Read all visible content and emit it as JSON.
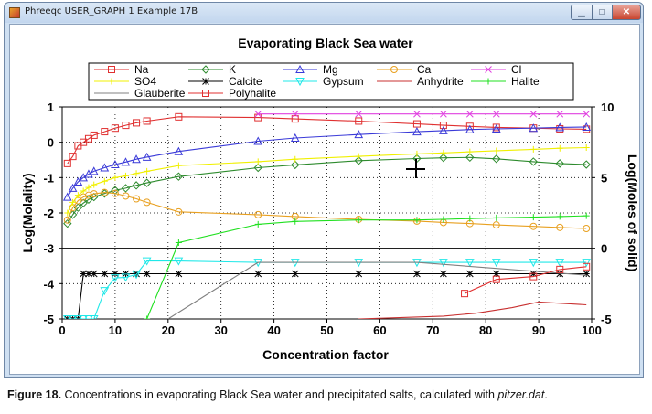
{
  "window": {
    "title": "Phreeqc USER_GRAPH 1 Example 17B"
  },
  "caption": {
    "label": "Figure 18.",
    "text": " Concentrations in evaporating Black Sea water and precipitated salts, calculated with ",
    "italic": "pitzer.dat",
    "end": "."
  },
  "chart_data": {
    "type": "line",
    "title": "Evaporating Black Sea water",
    "xlabel": "Concentration factor",
    "ylabel": "Log(Molality)",
    "y2label": "Log(Moles of solid)",
    "xlim": [
      0,
      100
    ],
    "ylim": [
      -5,
      1
    ],
    "y2lim": [
      -5,
      10
    ],
    "xticks": [
      0,
      10,
      20,
      30,
      40,
      50,
      60,
      70,
      80,
      90,
      100
    ],
    "yticks": [
      -5,
      -4,
      -3,
      -2,
      -1,
      0,
      1
    ],
    "y2ticks": [
      -5,
      0,
      5,
      10
    ],
    "grid": true,
    "legend_position": "top",
    "series": [
      {
        "name": "Na",
        "axis": "left",
        "color": "#e03030",
        "marker": "square",
        "x": [
          1,
          2,
          3,
          4,
          5,
          6,
          8,
          10,
          12,
          14,
          16,
          22,
          37,
          44,
          56,
          67,
          72,
          77,
          82,
          89,
          94,
          99
        ],
        "y": [
          -0.6,
          -0.4,
          -0.1,
          0.0,
          0.1,
          0.2,
          0.3,
          0.4,
          0.48,
          0.55,
          0.6,
          0.72,
          0.7,
          0.66,
          0.6,
          0.52,
          0.48,
          0.45,
          0.42,
          0.4,
          0.38,
          0.37
        ]
      },
      {
        "name": "K",
        "axis": "left",
        "color": "#2e8b2e",
        "marker": "diamond",
        "x": [
          1,
          2,
          3,
          4,
          5,
          6,
          8,
          10,
          12,
          14,
          16,
          22,
          37,
          44,
          56,
          67,
          72,
          77,
          82,
          89,
          94,
          99
        ],
        "y": [
          -2.3,
          -2.05,
          -1.85,
          -1.72,
          -1.62,
          -1.55,
          -1.45,
          -1.36,
          -1.3,
          -1.22,
          -1.15,
          -0.97,
          -0.72,
          -0.64,
          -0.52,
          -0.46,
          -0.44,
          -0.43,
          -0.47,
          -0.55,
          -0.6,
          -0.63
        ]
      },
      {
        "name": "Mg",
        "axis": "left",
        "color": "#3a3ad8",
        "marker": "triangle",
        "x": [
          1,
          2,
          3,
          4,
          5,
          6,
          8,
          10,
          12,
          14,
          16,
          22,
          37,
          44,
          56,
          67,
          72,
          77,
          82,
          89,
          94,
          99
        ],
        "y": [
          -1.55,
          -1.3,
          -1.12,
          -1.0,
          -0.9,
          -0.82,
          -0.72,
          -0.63,
          -0.56,
          -0.48,
          -0.42,
          -0.26,
          0.03,
          0.12,
          0.22,
          0.3,
          0.33,
          0.36,
          0.38,
          0.4,
          0.42,
          0.43
        ]
      },
      {
        "name": "Ca",
        "axis": "left",
        "color": "#e8a020",
        "marker": "circle",
        "x": [
          1,
          2,
          3,
          4,
          5,
          6,
          8,
          10,
          12,
          14,
          16,
          22,
          37,
          44,
          56,
          67,
          72,
          77,
          82,
          89,
          94,
          99
        ],
        "y": [
          -2.2,
          -1.85,
          -1.65,
          -1.55,
          -1.5,
          -1.46,
          -1.42,
          -1.45,
          -1.52,
          -1.6,
          -1.7,
          -1.97,
          -2.05,
          -2.1,
          -2.18,
          -2.23,
          -2.27,
          -2.3,
          -2.34,
          -2.38,
          -2.41,
          -2.44
        ]
      },
      {
        "name": "Cl",
        "axis": "left",
        "color": "#e040e0",
        "marker": "x",
        "x": [
          37,
          44,
          56,
          67,
          72,
          77,
          82,
          89,
          94,
          99
        ],
        "y": [
          0.8,
          0.8,
          0.8,
          0.8,
          0.8,
          0.8,
          0.8,
          0.8,
          0.8,
          0.8
        ]
      },
      {
        "name": "SO4",
        "axis": "left",
        "color": "#f0f000",
        "marker": "plus",
        "x": [
          1,
          2,
          3,
          4,
          5,
          6,
          8,
          10,
          12,
          14,
          16,
          22,
          37,
          44,
          56,
          67,
          72,
          77,
          82,
          89,
          94,
          99
        ],
        "y": [
          -2.0,
          -1.7,
          -1.5,
          -1.38,
          -1.28,
          -1.2,
          -1.1,
          -1.0,
          -0.95,
          -0.88,
          -0.82,
          -0.66,
          -0.55,
          -0.48,
          -0.4,
          -0.33,
          -0.3,
          -0.27,
          -0.24,
          -0.2,
          -0.17,
          -0.15
        ]
      },
      {
        "name": "Calcite",
        "axis": "right",
        "color": "#000000",
        "marker": "star",
        "x": [
          1,
          2,
          3,
          4,
          5,
          6,
          8,
          10,
          12,
          14,
          16,
          22,
          37,
          44,
          56,
          67,
          72,
          77,
          82,
          89,
          94,
          99
        ],
        "y": [
          -5,
          -5,
          -5,
          -1.8,
          -1.8,
          -1.8,
          -1.8,
          -1.8,
          -1.8,
          -1.8,
          -1.8,
          -1.8,
          -1.8,
          -1.8,
          -1.8,
          -1.8,
          -1.8,
          -1.8,
          -1.8,
          -1.8,
          -1.8,
          -1.8
        ]
      },
      {
        "name": "Gypsum",
        "axis": "right",
        "color": "#20e8e8",
        "marker": "triangle-down",
        "x": [
          1,
          2,
          3,
          4,
          5,
          6,
          8,
          10,
          12,
          14,
          16,
          22,
          37,
          44,
          56,
          67,
          72,
          77,
          82,
          89,
          94,
          99
        ],
        "y": [
          -5,
          -5,
          -5,
          -5,
          -5,
          -5,
          -3.0,
          -2.1,
          -2.05,
          -1.85,
          -0.9,
          -0.9,
          -1.0,
          -1.0,
          -1.0,
          -1.0,
          -1.0,
          -1.0,
          -1.0,
          -1.0,
          -1.0,
          -1.0
        ]
      },
      {
        "name": "Anhydrite",
        "axis": "right",
        "color": "#c83030",
        "marker": "none",
        "x": [
          56,
          72,
          78,
          85,
          90,
          99
        ],
        "y": [
          -5,
          -4.8,
          -4.6,
          -4.2,
          -3.8,
          -4.0
        ]
      },
      {
        "name": "Halite",
        "axis": "right",
        "color": "#20e020",
        "marker": "plus",
        "x": [
          16,
          22,
          37,
          44,
          56,
          67,
          72,
          77,
          82,
          89,
          94,
          99
        ],
        "y": [
          -5,
          0.4,
          1.7,
          1.9,
          2.0,
          2.0,
          2.05,
          2.1,
          2.15,
          2.2,
          2.25,
          2.3
        ]
      },
      {
        "name": "Glauberite",
        "axis": "right",
        "color": "#808080",
        "marker": "none",
        "x": [
          20,
          37,
          67,
          99
        ],
        "y": [
          -5,
          -1.0,
          -1.0,
          -1.9
        ]
      },
      {
        "name": "Polyhalite",
        "axis": "right",
        "color": "#e03030",
        "marker": "square",
        "x": [
          76,
          82,
          89,
          94,
          99
        ],
        "y": [
          -3.2,
          -2.2,
          -2.0,
          -1.5,
          -1.3
        ]
      }
    ]
  }
}
